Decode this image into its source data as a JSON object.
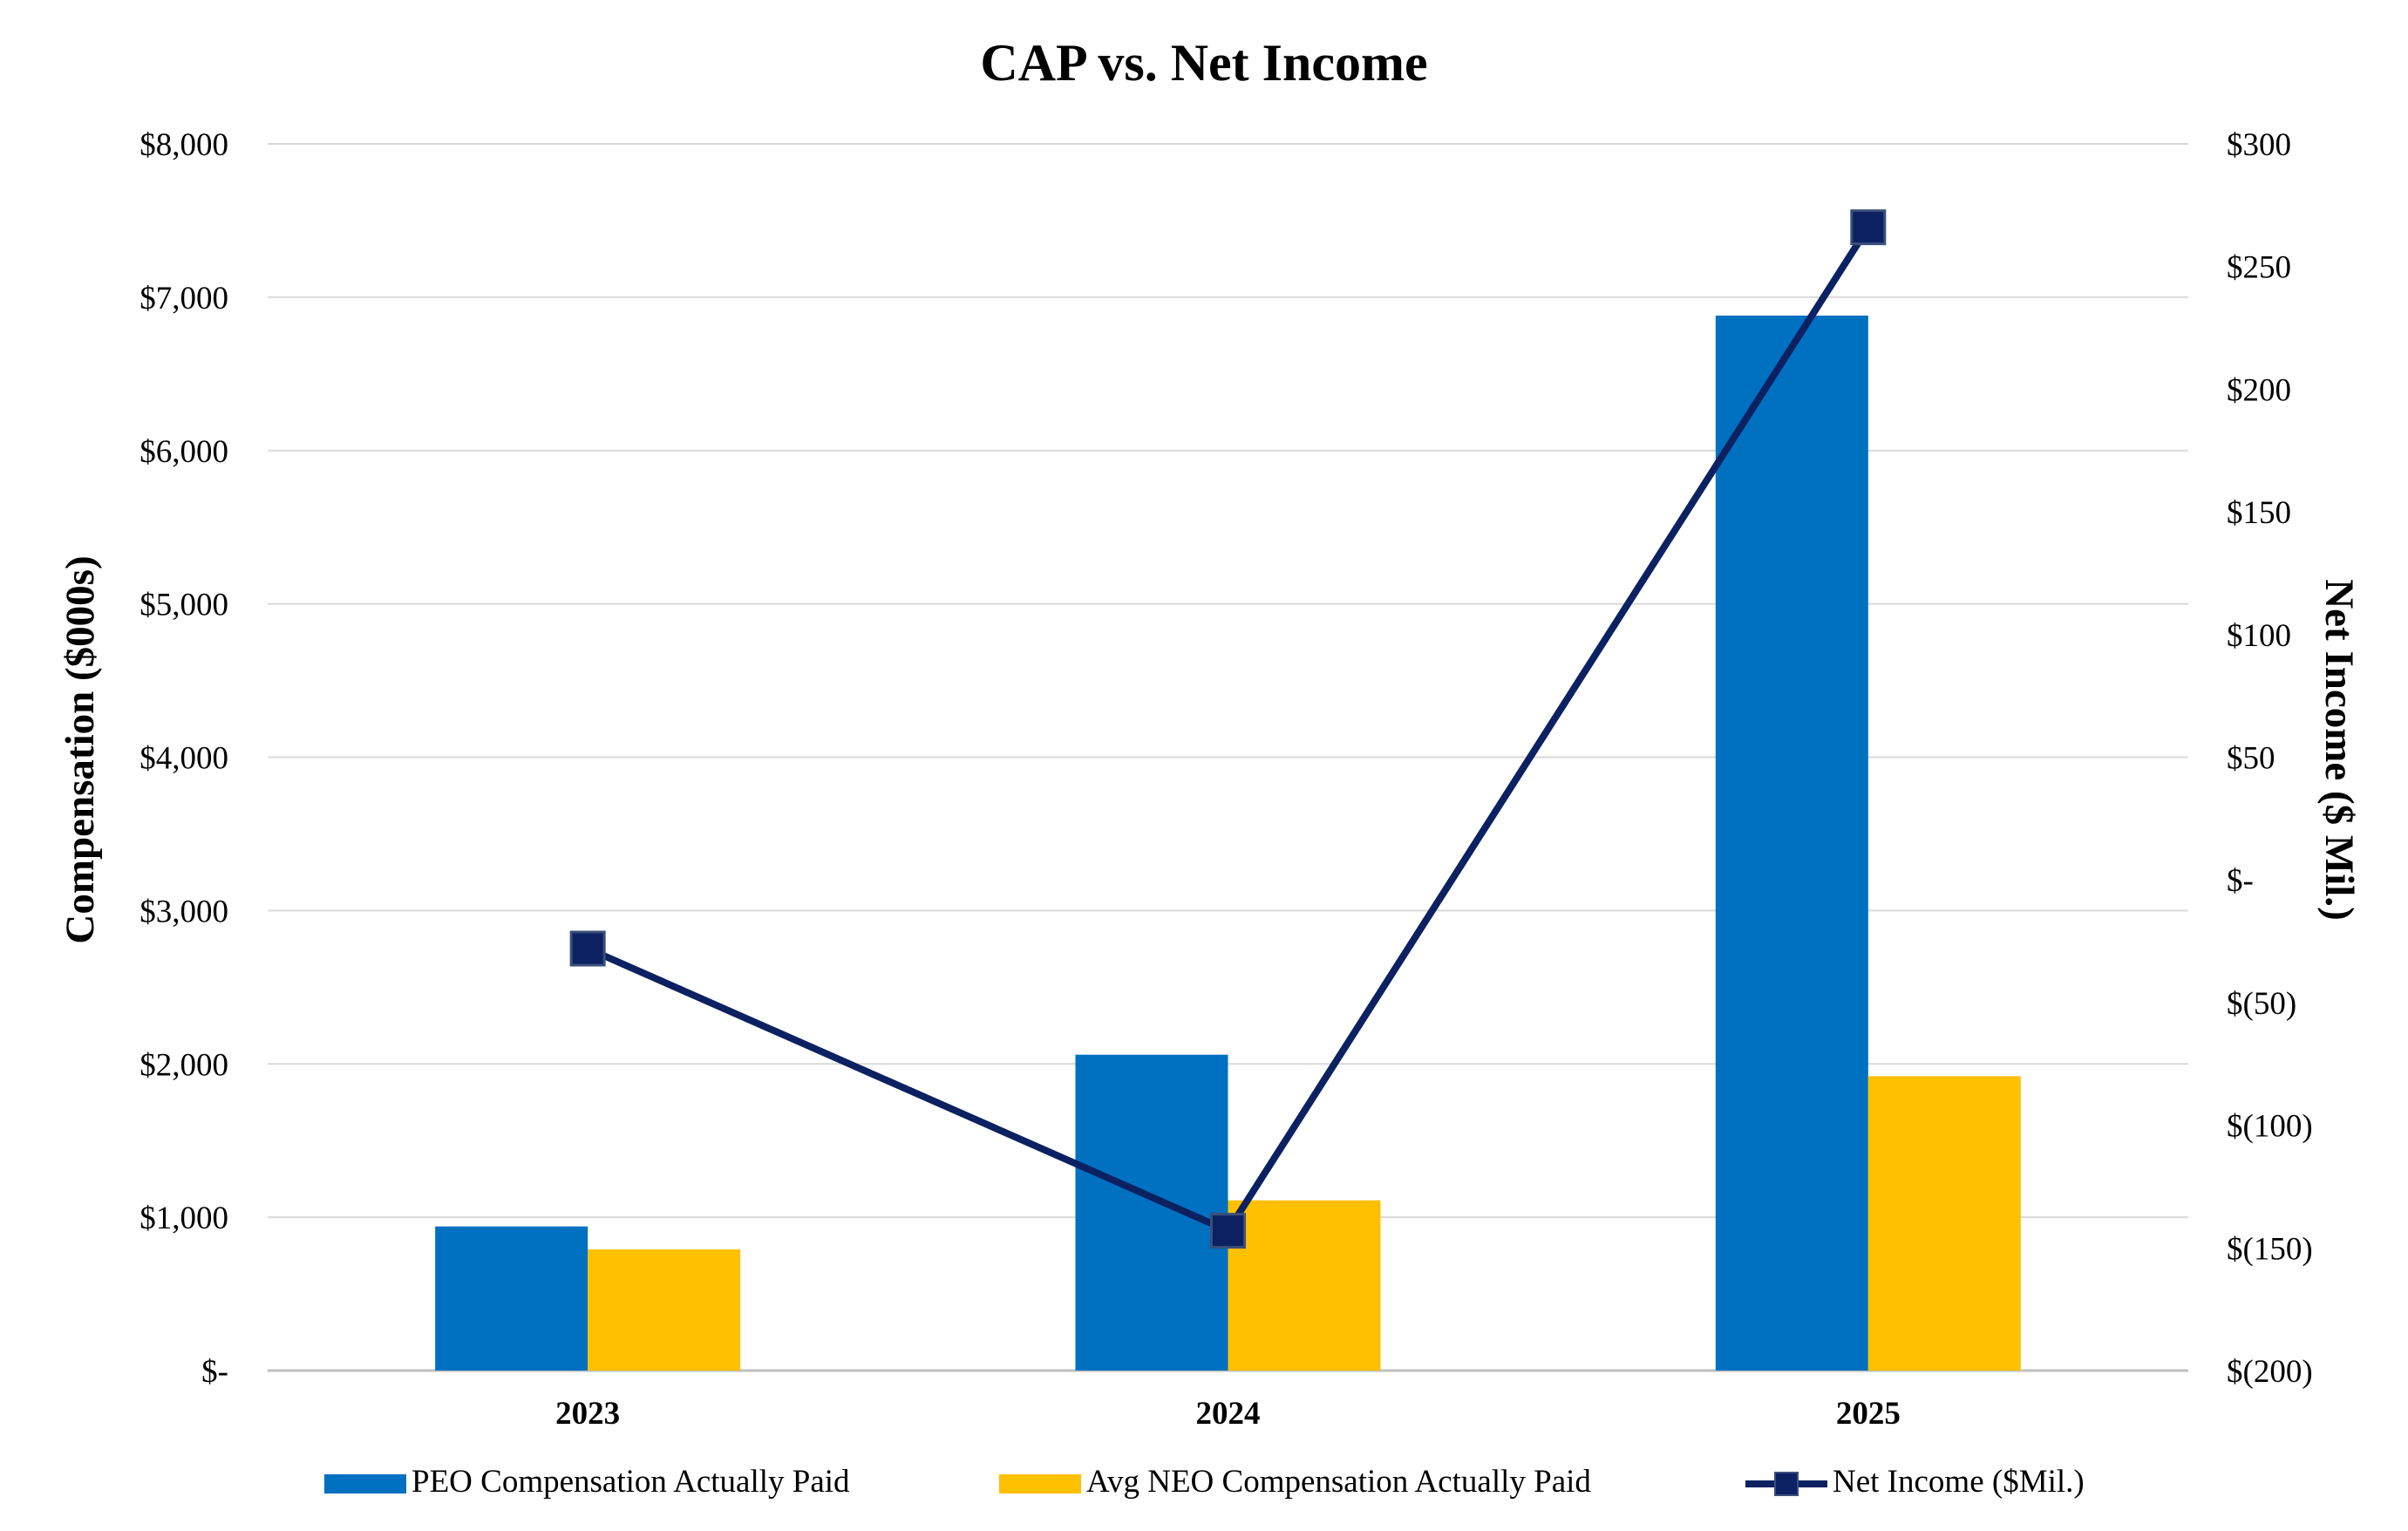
{
  "chart_data": {
    "type": "bar",
    "title": "CAP vs. Net Income",
    "categories": [
      "2023",
      "2024",
      "2025"
    ],
    "ylabel": "Compensation ($000s)",
    "ylabel_right": "Net Income ($ Mil.)",
    "ylim": [
      0,
      8000
    ],
    "ylim_right": [
      -200,
      300
    ],
    "yticks": [
      0,
      1000,
      2000,
      3000,
      4000,
      5000,
      6000,
      7000,
      8000
    ],
    "ytick_labels": [
      "$-",
      "$1,000",
      "$2,000",
      "$3,000",
      "$4,000",
      "$5,000",
      "$6,000",
      "$7,000",
      "$8,000"
    ],
    "yticks_right": [
      -200,
      -150,
      -100,
      -50,
      0,
      50,
      100,
      150,
      200,
      250,
      300
    ],
    "ytick_labels_right": [
      "$(200)",
      "$(150)",
      "$(100)",
      "$(50)",
      "$-",
      "$50",
      "$100",
      "$150",
      "$200",
      "$250",
      "$300"
    ],
    "grid": true,
    "legend_position": "bottom",
    "series": [
      {
        "name": "PEO Compensation Actually Paid",
        "type": "bar",
        "axis": "left",
        "color": "#0070C0",
        "values": [
          940,
          2060,
          6880
        ]
      },
      {
        "name": "Avg NEO Compensation Actually Paid",
        "type": "bar",
        "axis": "left",
        "color": "#FFC000",
        "values": [
          790,
          1110,
          1920
        ]
      },
      {
        "name": "Net Income ($Mil.)",
        "type": "line",
        "marker": "square",
        "axis": "right",
        "color": "#0B2161",
        "values": [
          -28,
          -143,
          266
        ]
      }
    ]
  }
}
